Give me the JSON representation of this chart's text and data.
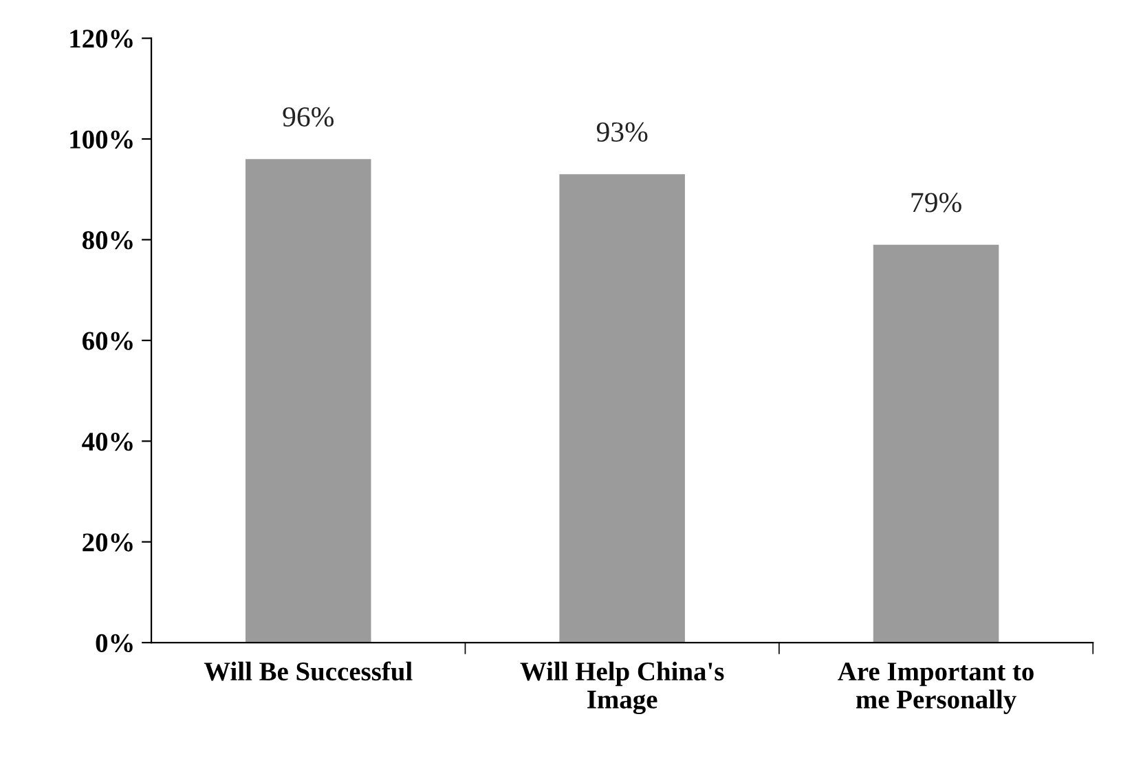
{
  "chart_data": {
    "type": "bar",
    "categories": [
      "Will Be Successful",
      "Will Help China's\nImage",
      "Are Important to\nme Personally"
    ],
    "values": [
      96,
      93,
      79
    ],
    "value_labels": [
      "96%",
      "93%",
      "79%"
    ],
    "color": "#9b9b9b",
    "ylim": [
      0,
      120
    ],
    "yticks": [
      {
        "value": 0,
        "label": "0%"
      },
      {
        "value": 20,
        "label": "20%"
      },
      {
        "value": 40,
        "label": "40%"
      },
      {
        "value": 60,
        "label": "60%"
      },
      {
        "value": 80,
        "label": "80%"
      },
      {
        "value": 100,
        "label": "100%"
      },
      {
        "value": 120,
        "label": "120%"
      }
    ],
    "grid": false,
    "legend": false
  }
}
